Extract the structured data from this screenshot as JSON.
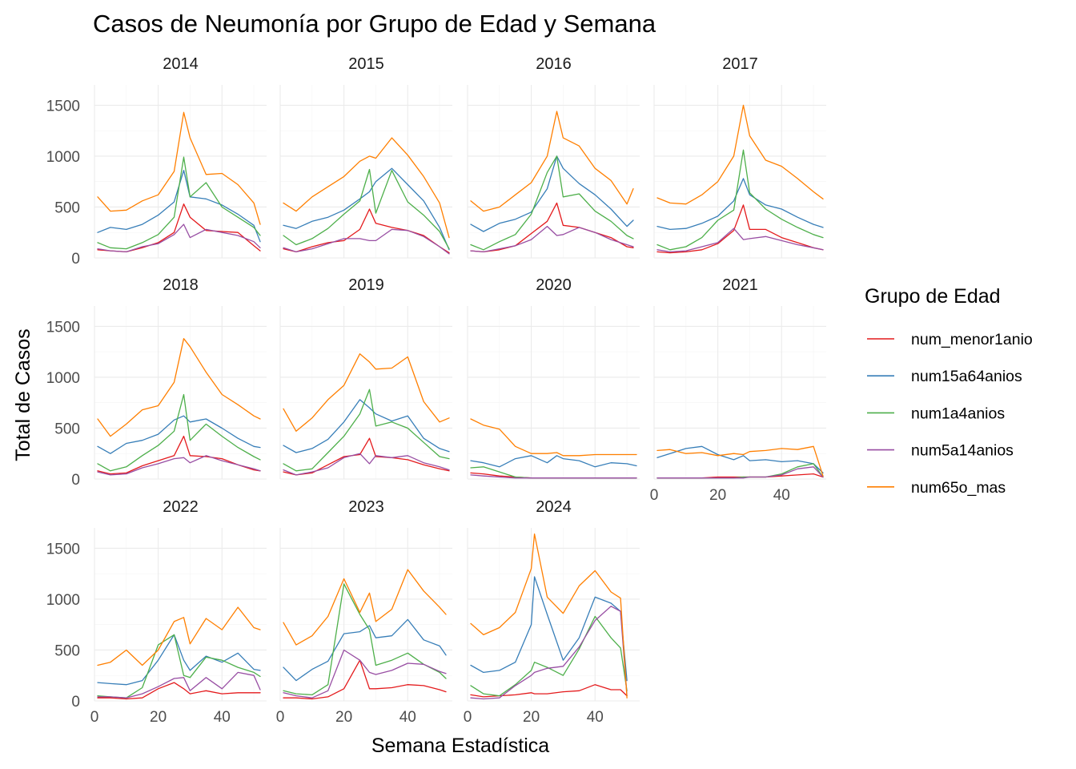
{
  "chart_data": {
    "type": "line",
    "title": "Casos de Neumonía por Grupo de Edad y Semana",
    "xlabel": "Semana Estadística",
    "ylabel": "Total de Casos",
    "xlim": [
      0,
      54
    ],
    "ylim": [
      0,
      1700
    ],
    "x_ticks": [
      0,
      20,
      40
    ],
    "y_ticks": [
      0,
      500,
      1000,
      1500
    ],
    "grid": true,
    "legend_title": "Grupo de Edad",
    "legend_position": "right",
    "series_names": [
      "num_menor1anio",
      "num15a64anios",
      "num1a4anios",
      "num5a14anios",
      "num65o_mas"
    ],
    "colors": {
      "num_menor1anio": "#E41A1C",
      "num15a64anios": "#377EB8",
      "num1a4anios": "#4DAF4A",
      "num5a14anios": "#984EA3",
      "num65o_mas": "#FF7F00"
    },
    "panels": [
      {
        "year": "2014",
        "weeks": [
          1,
          5,
          10,
          15,
          20,
          25,
          28,
          30,
          35,
          40,
          45,
          50,
          52
        ],
        "series": {
          "num_menor1anio": [
            80,
            70,
            60,
            100,
            150,
            250,
            530,
            400,
            270,
            260,
            250,
            120,
            70
          ],
          "num15a64anios": [
            250,
            300,
            280,
            330,
            420,
            550,
            860,
            600,
            580,
            520,
            430,
            320,
            160
          ],
          "num1a4anios": [
            150,
            100,
            90,
            150,
            230,
            400,
            990,
            600,
            740,
            500,
            400,
            300,
            220
          ],
          "num5a14anios": [
            90,
            70,
            60,
            110,
            140,
            230,
            330,
            200,
            280,
            250,
            220,
            160,
            100
          ],
          "num65o_mas": [
            600,
            460,
            470,
            560,
            620,
            850,
            1430,
            1180,
            820,
            830,
            720,
            540,
            330
          ]
        }
      },
      {
        "year": "2015",
        "weeks": [
          1,
          5,
          10,
          15,
          20,
          25,
          28,
          30,
          35,
          40,
          45,
          50,
          53
        ],
        "series": {
          "num_menor1anio": [
            90,
            60,
            110,
            150,
            170,
            280,
            480,
            340,
            300,
            270,
            220,
            110,
            50
          ],
          "num15a64anios": [
            320,
            290,
            360,
            400,
            470,
            580,
            650,
            750,
            880,
            720,
            560,
            300,
            80
          ],
          "num1a4anios": [
            220,
            130,
            190,
            290,
            430,
            560,
            870,
            440,
            860,
            550,
            420,
            260,
            90
          ],
          "num5a14anios": [
            100,
            60,
            90,
            140,
            190,
            190,
            170,
            170,
            280,
            270,
            210,
            110,
            40
          ],
          "num65o_mas": [
            540,
            460,
            600,
            700,
            800,
            950,
            1000,
            980,
            1180,
            1010,
            800,
            540,
            200
          ]
        }
      },
      {
        "year": "2016",
        "weeks": [
          1,
          5,
          10,
          15,
          20,
          25,
          28,
          30,
          35,
          40,
          45,
          50,
          52
        ],
        "series": {
          "num_menor1anio": [
            70,
            60,
            80,
            120,
            240,
            360,
            540,
            320,
            300,
            250,
            200,
            110,
            100
          ],
          "num15a64anios": [
            330,
            260,
            340,
            380,
            450,
            680,
            1000,
            880,
            730,
            620,
            480,
            310,
            370
          ],
          "num1a4anios": [
            130,
            80,
            160,
            230,
            430,
            840,
            1000,
            600,
            630,
            460,
            360,
            220,
            190
          ],
          "num5a14anios": [
            70,
            60,
            90,
            120,
            180,
            310,
            220,
            230,
            300,
            250,
            180,
            130,
            110
          ],
          "num65o_mas": [
            560,
            460,
            500,
            620,
            740,
            1000,
            1440,
            1180,
            1100,
            880,
            760,
            530,
            680
          ]
        }
      },
      {
        "year": "2017",
        "weeks": [
          1,
          5,
          10,
          15,
          20,
          25,
          28,
          30,
          35,
          40,
          45,
          50,
          53
        ],
        "series": {
          "num_menor1anio": [
            60,
            50,
            60,
            80,
            140,
            270,
            520,
            280,
            280,
            200,
            150,
            100,
            80
          ],
          "num15a64anios": [
            310,
            280,
            290,
            340,
            410,
            560,
            780,
            620,
            520,
            480,
            400,
            330,
            300
          ],
          "num1a4anios": [
            130,
            80,
            110,
            200,
            370,
            470,
            1060,
            640,
            480,
            380,
            300,
            230,
            200
          ],
          "num5a14anios": [
            80,
            60,
            70,
            110,
            150,
            290,
            180,
            190,
            210,
            170,
            130,
            100,
            80
          ],
          "num65o_mas": [
            590,
            540,
            530,
            620,
            750,
            1000,
            1500,
            1200,
            960,
            900,
            780,
            650,
            580
          ]
        }
      },
      {
        "year": "2018",
        "weeks": [
          1,
          5,
          10,
          15,
          20,
          25,
          28,
          30,
          35,
          40,
          45,
          50,
          52
        ],
        "series": {
          "num_menor1anio": [
            80,
            50,
            60,
            130,
            180,
            230,
            420,
            230,
            220,
            200,
            140,
            90,
            80
          ],
          "num15a64anios": [
            320,
            250,
            350,
            380,
            440,
            580,
            620,
            560,
            590,
            500,
            400,
            320,
            310
          ],
          "num1a4anios": [
            150,
            80,
            120,
            230,
            330,
            470,
            830,
            380,
            540,
            420,
            310,
            220,
            190
          ],
          "num5a14anios": [
            70,
            40,
            50,
            110,
            150,
            200,
            210,
            160,
            230,
            180,
            140,
            100,
            80
          ],
          "num65o_mas": [
            590,
            420,
            540,
            680,
            720,
            950,
            1380,
            1300,
            1050,
            830,
            730,
            620,
            590
          ]
        }
      },
      {
        "year": "2019",
        "weeks": [
          1,
          5,
          10,
          15,
          20,
          25,
          28,
          30,
          35,
          40,
          45,
          50,
          53
        ],
        "series": {
          "num_menor1anio": [
            70,
            40,
            60,
            140,
            220,
            240,
            400,
            220,
            210,
            190,
            140,
            100,
            80
          ],
          "num15a64anios": [
            330,
            260,
            300,
            390,
            560,
            780,
            700,
            640,
            570,
            620,
            400,
            300,
            270
          ],
          "num1a4anios": [
            150,
            80,
            100,
            260,
            420,
            640,
            880,
            520,
            560,
            500,
            360,
            220,
            200
          ],
          "num5a14anios": [
            90,
            40,
            70,
            110,
            210,
            250,
            150,
            230,
            210,
            230,
            160,
            120,
            90
          ],
          "num65o_mas": [
            690,
            470,
            600,
            780,
            920,
            1230,
            1150,
            1080,
            1090,
            1200,
            760,
            560,
            600
          ]
        }
      },
      {
        "year": "2020",
        "weeks": [
          1,
          5,
          10,
          15,
          20,
          25,
          28,
          30,
          35,
          40,
          45,
          50,
          53
        ],
        "series": {
          "num_menor1anio": [
            60,
            50,
            30,
            20,
            10,
            10,
            10,
            10,
            10,
            10,
            10,
            10,
            10
          ],
          "num15a64anios": [
            180,
            160,
            120,
            200,
            230,
            160,
            230,
            200,
            180,
            120,
            160,
            150,
            130
          ],
          "num1a4anios": [
            110,
            120,
            70,
            20,
            10,
            10,
            10,
            10,
            10,
            10,
            10,
            10,
            10
          ],
          "num5a14anios": [
            40,
            30,
            20,
            10,
            10,
            10,
            10,
            10,
            10,
            10,
            10,
            10,
            10
          ],
          "num65o_mas": [
            590,
            530,
            490,
            320,
            250,
            250,
            260,
            230,
            230,
            240,
            240,
            240,
            240
          ]
        }
      },
      {
        "year": "2021",
        "weeks": [
          1,
          5,
          10,
          15,
          20,
          25,
          28,
          30,
          35,
          40,
          45,
          50,
          53
        ],
        "series": {
          "num_menor1anio": [
            10,
            10,
            10,
            10,
            20,
            20,
            20,
            20,
            20,
            30,
            40,
            50,
            20
          ],
          "num15a64anios": [
            210,
            250,
            300,
            320,
            240,
            190,
            230,
            180,
            190,
            170,
            180,
            150,
            60
          ],
          "num1a4anios": [
            10,
            10,
            10,
            10,
            10,
            10,
            20,
            20,
            20,
            50,
            120,
            150,
            20
          ],
          "num5a14anios": [
            10,
            10,
            10,
            10,
            10,
            10,
            10,
            20,
            20,
            40,
            100,
            120,
            20
          ],
          "num65o_mas": [
            280,
            290,
            250,
            260,
            230,
            250,
            240,
            270,
            280,
            300,
            290,
            320,
            30
          ]
        }
      },
      {
        "year": "2022",
        "weeks": [
          1,
          5,
          10,
          15,
          20,
          25,
          28,
          30,
          35,
          40,
          45,
          50,
          52
        ],
        "series": {
          "num_menor1anio": [
            30,
            30,
            20,
            30,
            120,
            180,
            120,
            70,
            100,
            70,
            80,
            80,
            80
          ],
          "num15a64anios": [
            180,
            170,
            160,
            200,
            400,
            650,
            400,
            300,
            440,
            380,
            470,
            310,
            300
          ],
          "num1a4anios": [
            50,
            40,
            30,
            130,
            550,
            650,
            250,
            230,
            430,
            400,
            330,
            280,
            240
          ],
          "num5a14anios": [
            40,
            40,
            30,
            70,
            140,
            220,
            230,
            100,
            230,
            120,
            280,
            250,
            110
          ],
          "num65o_mas": [
            350,
            380,
            500,
            350,
            500,
            780,
            820,
            560,
            810,
            700,
            920,
            720,
            700
          ]
        }
      },
      {
        "year": "2023",
        "weeks": [
          1,
          5,
          10,
          15,
          20,
          25,
          28,
          30,
          35,
          40,
          45,
          50,
          52
        ],
        "series": {
          "num_menor1anio": [
            30,
            30,
            20,
            40,
            120,
            400,
            120,
            120,
            130,
            160,
            150,
            110,
            90
          ],
          "num15a64anios": [
            330,
            200,
            310,
            390,
            660,
            680,
            740,
            620,
            640,
            800,
            600,
            540,
            450
          ],
          "num1a4anios": [
            100,
            70,
            60,
            160,
            1150,
            850,
            700,
            350,
            400,
            470,
            360,
            280,
            220
          ],
          "num5a14anios": [
            80,
            50,
            30,
            100,
            500,
            400,
            280,
            260,
            300,
            370,
            360,
            290,
            270
          ],
          "num65o_mas": [
            770,
            550,
            640,
            830,
            1200,
            870,
            1060,
            780,
            900,
            1290,
            1080,
            920,
            850
          ]
        }
      },
      {
        "year": "2024",
        "weeks": [
          1,
          5,
          10,
          15,
          20,
          21,
          25,
          30,
          35,
          40,
          45,
          48,
          50
        ],
        "series": {
          "num_menor1anio": [
            60,
            40,
            50,
            60,
            80,
            70,
            70,
            90,
            100,
            160,
            110,
            110,
            50
          ],
          "num15a64anios": [
            350,
            280,
            300,
            380,
            750,
            1220,
            850,
            400,
            620,
            1020,
            960,
            880,
            200
          ],
          "num1a4anios": [
            150,
            70,
            50,
            160,
            300,
            380,
            330,
            250,
            510,
            830,
            620,
            520,
            100
          ],
          "num5a14anios": [
            30,
            20,
            30,
            150,
            250,
            280,
            320,
            340,
            530,
            790,
            930,
            880,
            50
          ],
          "num65o_mas": [
            760,
            650,
            720,
            870,
            1300,
            1640,
            1020,
            860,
            1130,
            1280,
            1070,
            1010,
            30
          ]
        }
      }
    ]
  }
}
